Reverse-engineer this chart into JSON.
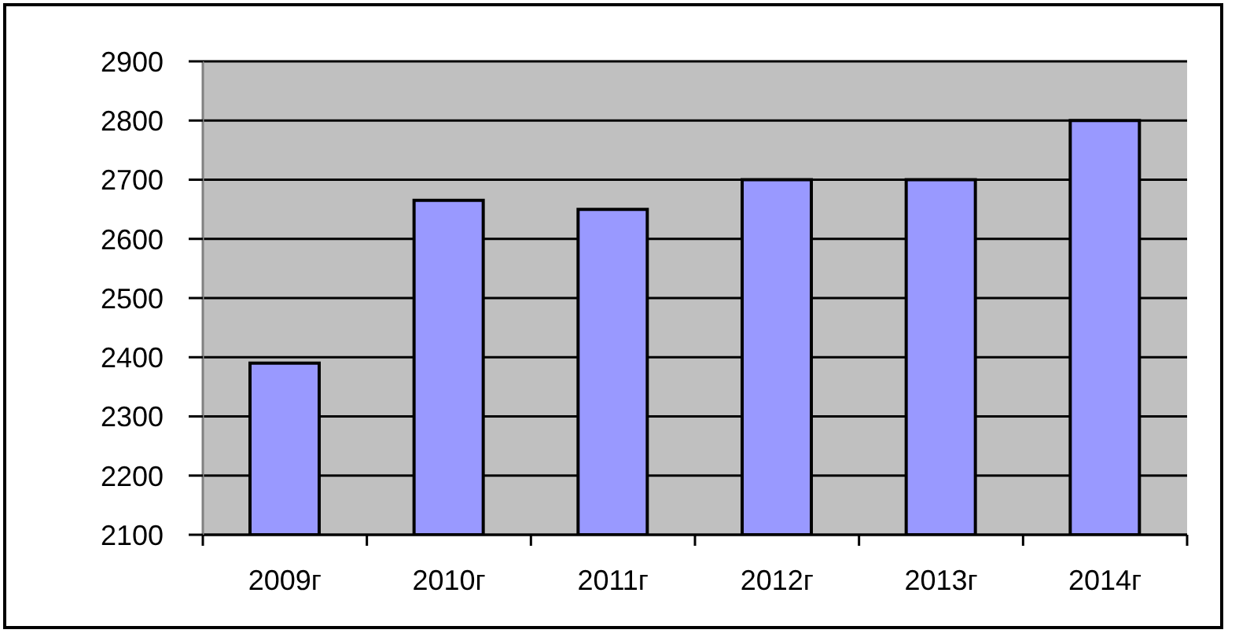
{
  "chart_data": {
    "type": "bar",
    "categories": [
      "2009г",
      "2010г",
      "2011г",
      "2012г",
      "2013г",
      "2014г"
    ],
    "values": [
      2390,
      2665,
      2650,
      2700,
      2700,
      2800
    ],
    "color": "#9999ff",
    "ylim": [
      2100,
      2900
    ],
    "yticks": [
      2100,
      2200,
      2300,
      2400,
      2500,
      2600,
      2700,
      2800,
      2900
    ],
    "grid": "y"
  }
}
